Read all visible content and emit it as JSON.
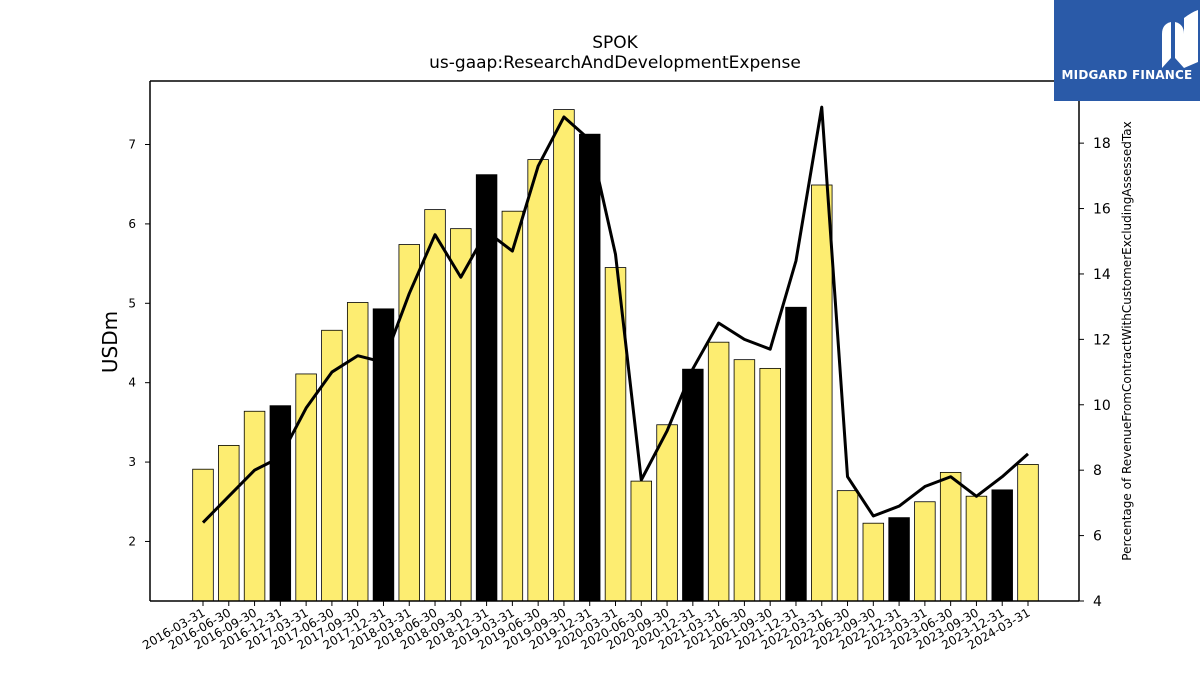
{
  "brand": {
    "name": "MIDGARD FINANCE",
    "color": "#2a5aa8"
  },
  "chart_data": {
    "type": "bar",
    "title": "SPOK",
    "subtitle": "us-gaap:ResearchAndDevelopmentExpense",
    "ylabel": "USDm",
    "y2label": "Percentage of RevenueFromContractWithCustomerExcludingAssessedTax",
    "ylim": [
      1.25,
      7.8
    ],
    "y2lim": [
      4,
      19.9
    ],
    "yticks": [
      2,
      3,
      4,
      5,
      6,
      7
    ],
    "y2ticks": [
      4,
      6,
      8,
      10,
      12,
      14,
      16,
      18
    ],
    "categories": [
      "2016-03-31",
      "2016-06-30",
      "2016-09-30",
      "2016-12-31",
      "2017-03-31",
      "2017-06-30",
      "2017-09-30",
      "2017-12-31",
      "2018-03-31",
      "2018-06-30",
      "2018-09-30",
      "2018-12-31",
      "2019-03-31",
      "2019-06-30",
      "2019-09-30",
      "2019-12-31",
      "2020-03-31",
      "2020-06-30",
      "2020-09-30",
      "2020-12-31",
      "2021-03-31",
      "2021-06-30",
      "2021-09-30",
      "2021-12-31",
      "2022-03-31",
      "2022-06-30",
      "2022-09-30",
      "2022-12-31",
      "2023-03-31",
      "2023-06-30",
      "2023-09-30",
      "2023-12-31",
      "2024-03-31"
    ],
    "series": [
      {
        "type": "bar",
        "axis": "left",
        "values": [
          2.91,
          3.21,
          3.64,
          3.71,
          4.11,
          4.66,
          5.01,
          4.93,
          5.74,
          6.18,
          5.94,
          6.62,
          6.16,
          6.81,
          7.44,
          7.13,
          5.45,
          2.76,
          3.47,
          4.17,
          4.51,
          4.29,
          4.18,
          4.95,
          6.49,
          2.64,
          2.23,
          2.3,
          2.5,
          2.87,
          2.57,
          2.65,
          2.97
        ],
        "highlight": [
          false,
          false,
          false,
          true,
          false,
          false,
          false,
          true,
          false,
          false,
          false,
          true,
          false,
          false,
          false,
          true,
          false,
          false,
          false,
          true,
          false,
          false,
          false,
          true,
          false,
          false,
          false,
          true,
          false,
          false,
          false,
          true,
          false
        ],
        "color": "#fded71",
        "highlight_color": "#000000"
      },
      {
        "type": "line",
        "axis": "right",
        "values": [
          6.4,
          7.2,
          8.0,
          8.4,
          9.9,
          11.0,
          11.5,
          11.3,
          13.4,
          15.2,
          13.9,
          15.3,
          14.7,
          17.3,
          18.8,
          18.1,
          14.6,
          7.7,
          9.2,
          11.1,
          12.5,
          12.0,
          11.7,
          14.4,
          19.1,
          7.8,
          6.6,
          6.9,
          7.5,
          7.8,
          7.2,
          7.8,
          8.5
        ],
        "color": "#000000"
      }
    ]
  }
}
